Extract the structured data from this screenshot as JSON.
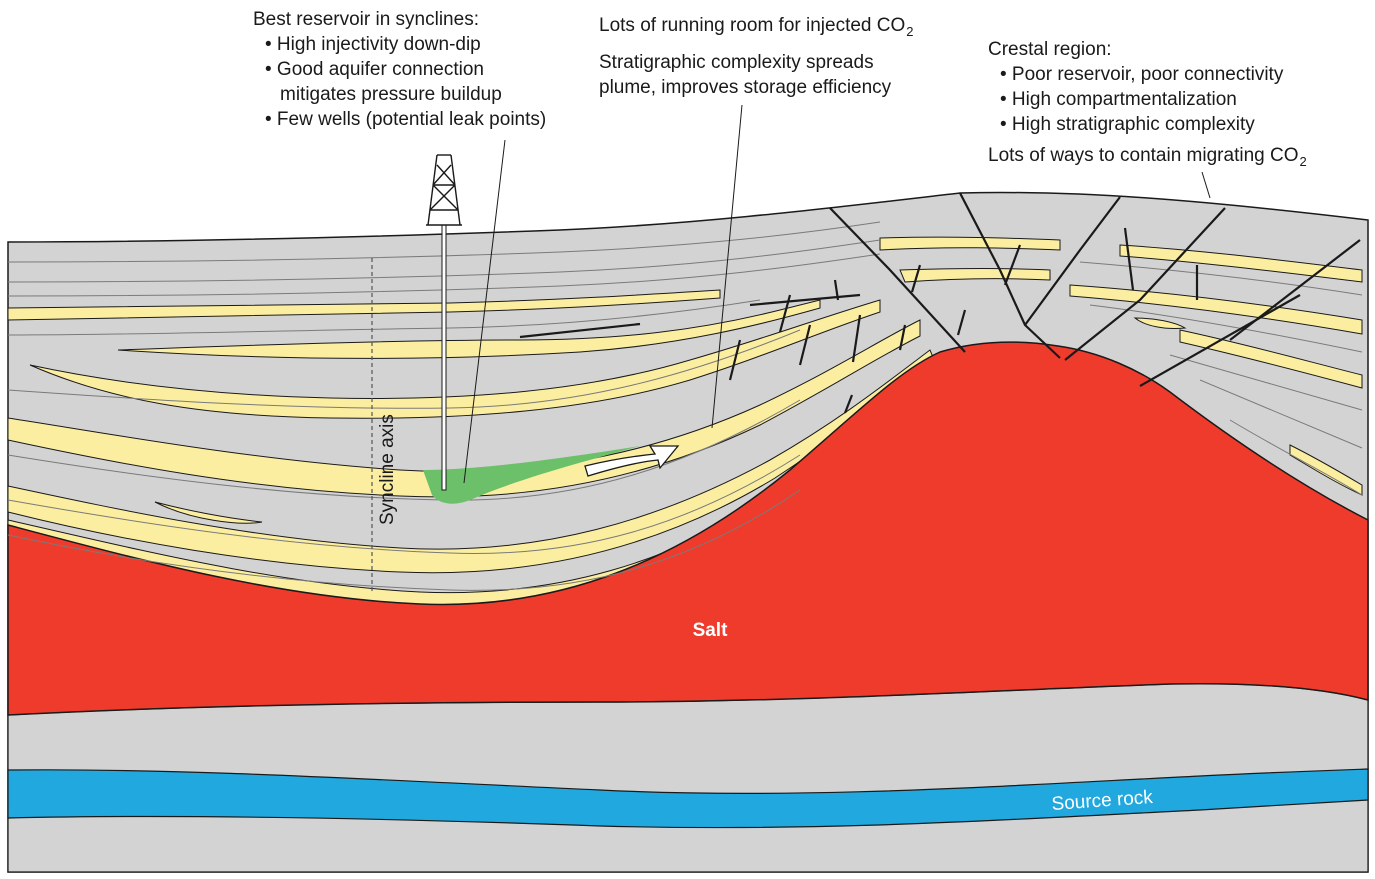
{
  "callouts": {
    "synclines": {
      "heading": "Best reservoir in synclines:",
      "items": [
        "• High injectivity down-dip",
        "• Good aquifer connection",
        "mitigates pressure buildup",
        "• Few wells (potential leak points)"
      ]
    },
    "running_room": {
      "line1": "Lots of running room for injected CO",
      "line2": "Stratigraphic complexity spreads",
      "line3": "plume, improves storage efficiency"
    },
    "crestal": {
      "heading": "Crestal region:",
      "items": [
        "• Poor reservoir, poor connectivity",
        "• High compartmentalization",
        "• High stratigraphic complexity"
      ],
      "footer": "Lots of ways to contain migrating CO"
    }
  },
  "labels": {
    "syncline_axis": "Syncline axis",
    "salt": "Salt",
    "source_rock": "Source rock"
  },
  "colors": {
    "shale": "#d3d3d3",
    "sand": "#fbeea0",
    "salt": "#ee3b2c",
    "source_rock": "#21a8df",
    "plume": "#6cc06a",
    "outline": "#1a1a1a",
    "bedding": "#7a7a7a"
  }
}
